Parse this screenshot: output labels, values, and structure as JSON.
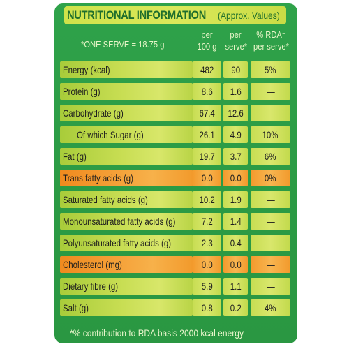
{
  "title": "NUTRITIONAL INFORMATION",
  "subtitle": "(Approx. Values)",
  "serve": "*ONE SERVE = 18.75 g",
  "columns": {
    "per100_line1": "per",
    "per100_line2": "100 g",
    "perserve_line1": "per",
    "perserve_line2": "serve*",
    "rda_line1": "% RDA⁻",
    "rda_line2": "per serve*"
  },
  "rows": [
    {
      "label": "Energy (kcal)",
      "per100": "482",
      "serve": "90",
      "rda": "5%"
    },
    {
      "label": "Protein (g)",
      "per100": "8.6",
      "serve": "1.6",
      "rda": "—"
    },
    {
      "label": "Carbohydrate (g)",
      "per100": "67.4",
      "serve": "12.6",
      "rda": "—"
    },
    {
      "label": "Of which Sugar (g)",
      "per100": "26.1",
      "serve": "4.9",
      "rda": "10%"
    },
    {
      "label": "Fat (g)",
      "per100": "19.7",
      "serve": "3.7",
      "rda": "6%"
    },
    {
      "label": "Trans fatty acids (g)",
      "per100": "0.0",
      "serve": "0.0",
      "rda": "0%"
    },
    {
      "label": "Saturated fatty acids (g)",
      "per100": "10.2",
      "serve": "1.9",
      "rda": "—"
    },
    {
      "label": "Monounsaturated fatty acids (g)",
      "per100": "7.2",
      "serve": "1.4",
      "rda": "—"
    },
    {
      "label": "Polyunsaturated fatty acids (g)",
      "per100": "2.3",
      "serve": "0.4",
      "rda": "—"
    },
    {
      "label": "Cholesterol (mg)",
      "per100": "0.0",
      "serve": "0.0",
      "rda": "—"
    },
    {
      "label": "Dietary fibre (g)",
      "per100": "5.9",
      "serve": "1.1",
      "rda": "—"
    },
    {
      "label": "Salt (g)",
      "per100": "0.8",
      "serve": "0.2",
      "rda": "4%"
    }
  ],
  "footnote": "*% contribution to RDA basis 2000 kcal energy",
  "colors": {
    "panel_green": "#2fa24a",
    "cell_lime": "#c7dd52",
    "cell_orange": "#f5a23a",
    "title_text": "#1f6e2c"
  }
}
